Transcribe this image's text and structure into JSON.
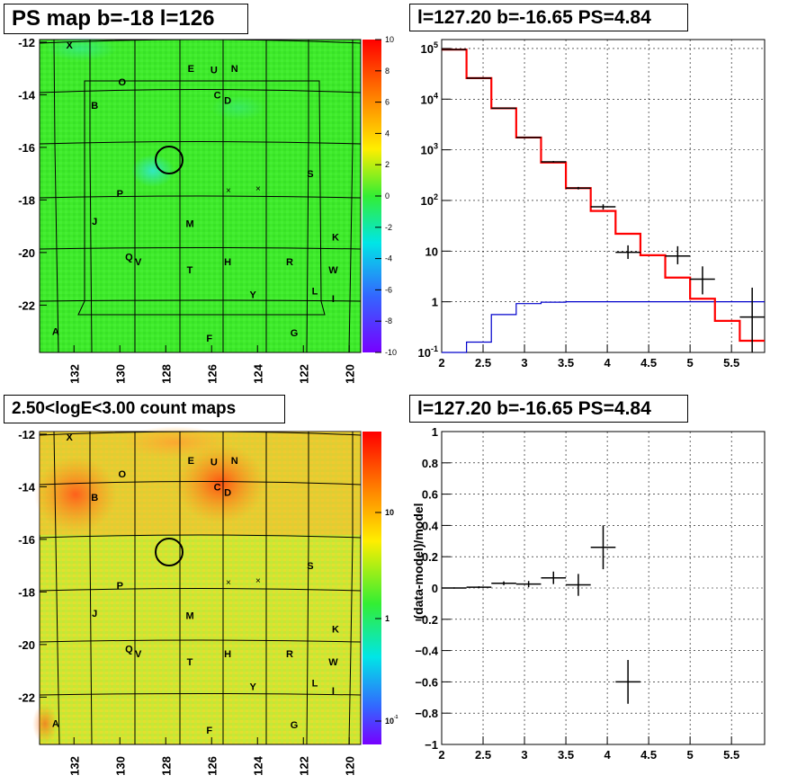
{
  "titles": {
    "map_top": "PS map b=-18 l=126",
    "spec_top": "l=127.20 b=-16.65 PS=4.84",
    "map_bottom": "2.50<logE<3.00 count maps",
    "spec_bottom": "l=127.20 b=-16.65 PS=4.84"
  },
  "colors": {
    "data": "#000000",
    "model_total": "#ff0000",
    "model_source": "#0000cc",
    "map_background_top": "#3fea2a",
    "map_background_bottom": "#cfe830"
  },
  "chart_data": [
    {
      "type": "heatmap",
      "name": "PS map",
      "xlim": [
        133.5,
        119.5
      ],
      "ylim": [
        -23.8,
        -11.9
      ],
      "xticks": [
        "132",
        "130",
        "128",
        "126",
        "124",
        "122",
        "120"
      ],
      "yticks": [
        "-12",
        "-14",
        "-16",
        "-18",
        "-20",
        "-22"
      ],
      "colorbar": {
        "min": -10,
        "max": 10,
        "ticks": [
          "10",
          "8",
          "6",
          "4",
          "2",
          "0",
          "-2",
          "-4",
          "-6",
          "-8",
          "-10"
        ]
      },
      "source_circle": {
        "l": 127.2,
        "b": -16.65
      },
      "crosses": [
        {
          "l": 125.0,
          "b": -17.7
        },
        {
          "l": 123.75,
          "b": -17.6
        }
      ],
      "labels": [
        {
          "t": "X",
          "l": 132.2,
          "b": -12.1
        },
        {
          "t": "E",
          "l": 126.9,
          "b": -13.0
        },
        {
          "t": "U",
          "l": 125.9,
          "b": -13.05
        },
        {
          "t": "N",
          "l": 125.0,
          "b": -13.0
        },
        {
          "t": "O",
          "l": 129.9,
          "b": -13.5
        },
        {
          "t": "C",
          "l": 125.75,
          "b": -14.0
        },
        {
          "t": "D",
          "l": 125.3,
          "b": -14.2
        },
        {
          "t": "B",
          "l": 131.1,
          "b": -14.4
        },
        {
          "t": "S",
          "l": 121.7,
          "b": -17.0
        },
        {
          "t": "P",
          "l": 130.0,
          "b": -17.75
        },
        {
          "t": "J",
          "l": 131.1,
          "b": -18.8
        },
        {
          "t": "M",
          "l": 126.95,
          "b": -18.9
        },
        {
          "t": "K",
          "l": 120.6,
          "b": -19.4
        },
        {
          "t": "Q",
          "l": 129.6,
          "b": -20.15
        },
        {
          "t": "V",
          "l": 129.2,
          "b": -20.35
        },
        {
          "t": "H",
          "l": 125.3,
          "b": -20.35
        },
        {
          "t": "R",
          "l": 122.6,
          "b": -20.35
        },
        {
          "t": "W",
          "l": 120.7,
          "b": -20.65
        },
        {
          "t": "T",
          "l": 126.95,
          "b": -20.65
        },
        {
          "t": "L",
          "l": 121.5,
          "b": -21.45
        },
        {
          "t": "I",
          "l": 120.7,
          "b": -21.75
        },
        {
          "t": "Y",
          "l": 124.2,
          "b": -21.6
        },
        {
          "t": "A",
          "l": 132.8,
          "b": -23.0
        },
        {
          "t": "G",
          "l": 122.4,
          "b": -23.05
        },
        {
          "t": "F",
          "l": 126.1,
          "b": -23.25
        }
      ]
    },
    {
      "type": "line",
      "name": "spectrum",
      "log_y": true,
      "xlim": [
        2.0,
        5.9
      ],
      "ylim": [
        0.1,
        150000
      ],
      "xticks": [
        2,
        2.5,
        3,
        3.5,
        4,
        4.5,
        5,
        5.5
      ],
      "xtick_labels": [
        "2",
        "2.5",
        "3",
        "3.5",
        "4",
        "4.5",
        "5",
        "5.5"
      ],
      "ytick_labels": [
        "10-1",
        "1",
        "10",
        "102",
        "103",
        "104",
        "105"
      ],
      "grid": true,
      "bin_edges": [
        2.0,
        2.3,
        2.6,
        2.9,
        3.2,
        3.5,
        3.8,
        4.1,
        4.4,
        4.7,
        5.0,
        5.3,
        5.6,
        5.9
      ],
      "model_total": [
        95000,
        26000,
        6600,
        1750,
        560,
        175,
        62,
        22,
        8.3,
        3.0,
        1.15,
        0.42,
        0.17
      ],
      "model_source": [
        0.05,
        0.16,
        0.56,
        0.92,
        0.98,
        1.0,
        1.0,
        1.0,
        1.0,
        1.0,
        1.0,
        1.0,
        1.0
      ],
      "data": [
        {
          "x": 2.15,
          "y": 95000,
          "ylo": 94000,
          "yhi": 96000,
          "xe": 0.15
        },
        {
          "x": 2.45,
          "y": 26000,
          "ylo": 25800,
          "yhi": 26200,
          "xe": 0.15
        },
        {
          "x": 2.75,
          "y": 6600,
          "ylo": 6500,
          "yhi": 6700,
          "xe": 0.15
        },
        {
          "x": 3.05,
          "y": 1750,
          "ylo": 1720,
          "yhi": 1780,
          "xe": 0.15
        },
        {
          "x": 3.35,
          "y": 580,
          "ylo": 560,
          "yhi": 600,
          "xe": 0.15
        },
        {
          "x": 3.65,
          "y": 175,
          "ylo": 165,
          "yhi": 185,
          "xe": 0.15
        },
        {
          "x": 3.95,
          "y": 75,
          "ylo": 66,
          "yhi": 84,
          "xe": 0.15
        },
        {
          "x": 4.25,
          "y": 9.5,
          "ylo": 7.0,
          "yhi": 13.0,
          "xe": 0.15
        },
        {
          "x": 4.85,
          "y": 8.0,
          "ylo": 5.5,
          "yhi": 12.5,
          "xe": 0.15
        },
        {
          "x": 5.15,
          "y": 2.8,
          "ylo": 1.4,
          "yhi": 5.0,
          "xe": 0.15
        },
        {
          "x": 5.75,
          "y": 0.5,
          "ylo": 0.1,
          "yhi": 1.9,
          "xe": 0.15
        }
      ]
    },
    {
      "type": "heatmap",
      "name": "count map",
      "xlim": [
        133.5,
        119.5
      ],
      "ylim": [
        -23.8,
        -11.9
      ],
      "xticks": [
        "132",
        "130",
        "128",
        "126",
        "124",
        "122",
        "120"
      ],
      "yticks": [
        "-12",
        "-14",
        "-16",
        "-18",
        "-20",
        "-22"
      ],
      "colorbar": {
        "log": true,
        "ticks": [
          "10",
          "1",
          "10-1"
        ]
      }
    },
    {
      "type": "scatter",
      "name": "residuals",
      "xlim": [
        2.0,
        5.9
      ],
      "ylim": [
        -1.0,
        1.0
      ],
      "ylabel": "(data-model)/model",
      "xticks": [
        2,
        2.5,
        3,
        3.5,
        4,
        4.5,
        5,
        5.5
      ],
      "xtick_labels": [
        "2",
        "2.5",
        "3",
        "3.5",
        "4",
        "4.5",
        "5",
        "5.5"
      ],
      "yticks": [
        -1,
        -0.8,
        -0.6,
        -0.4,
        -0.2,
        0,
        0.2,
        0.4,
        0.6,
        0.8,
        1
      ],
      "ytick_labels": [
        "−1",
        "−0.8",
        "−0.6",
        "−0.4",
        "−0.2",
        "0",
        "0.2",
        "0.4",
        "0.6",
        "0.8",
        "1"
      ],
      "grid": true,
      "points": [
        {
          "x": 2.15,
          "y": 0.0,
          "err": 0.004,
          "xe": 0.15
        },
        {
          "x": 2.45,
          "y": 0.005,
          "err": 0.006,
          "xe": 0.15
        },
        {
          "x": 2.75,
          "y": 0.03,
          "err": 0.012,
          "xe": 0.15
        },
        {
          "x": 3.05,
          "y": 0.025,
          "err": 0.02,
          "xe": 0.15
        },
        {
          "x": 3.35,
          "y": 0.065,
          "err": 0.04,
          "xe": 0.15
        },
        {
          "x": 3.65,
          "y": 0.02,
          "err": 0.07,
          "xe": 0.15
        },
        {
          "x": 3.95,
          "y": 0.26,
          "err": 0.14,
          "xe": 0.15
        },
        {
          "x": 4.25,
          "y": -0.6,
          "err": 0.14,
          "xe": 0.15
        }
      ]
    }
  ]
}
